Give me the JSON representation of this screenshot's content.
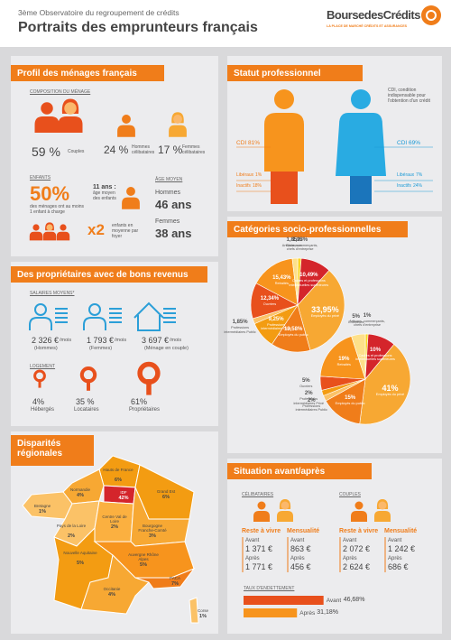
{
  "header": {
    "title": "3ème Observatoire du regroupement de crédits",
    "subtitle": "Portraits des emprunteurs français",
    "logo": "BoursedesCrédits",
    "logo_tagline": "LA PLACE DE MARCHÉ CRÉDITS ET ASSURANCES"
  },
  "profil": {
    "title": "Profil des ménages français",
    "composition_label": "COMPOSITION DU MÉNAGE",
    "composition": [
      {
        "value": "59 %",
        "label": "Couples"
      },
      {
        "value": "24 %",
        "label": "Hommes célibataires"
      },
      {
        "value": "17 %",
        "label": "Femmes célibataires"
      }
    ],
    "enfants_label": "ENFANTS",
    "enfants_pct": "50%",
    "enfants_desc": "des ménages ont au moins 1 enfant à charge",
    "age_enfants": "11 ans :",
    "age_enfants_desc": "âge moyen des enfants",
    "nb_enfants": "x2",
    "nb_enfants_desc": "enfants en moyenne par foyer",
    "age_label": "ÂGE MOYEN",
    "ages": [
      {
        "label": "Hommes",
        "value": "46 ans"
      },
      {
        "label": "Femmes",
        "value": "38 ans"
      }
    ]
  },
  "proprietaires": {
    "title": "Des propriétaires avec de bons revenus",
    "salaires_label": "SALAIRES MOYENS*",
    "salaires": [
      {
        "amount": "2 326 €",
        "unit": "/mois",
        "label": "(Hommes)"
      },
      {
        "amount": "1 793 €",
        "unit": "/mois",
        "label": "(Femmes)"
      },
      {
        "amount": "3 697 €",
        "unit": "/mois",
        "label": "(Ménage en couple)"
      }
    ],
    "logement_label": "LOGEMENT",
    "logement": [
      {
        "value": "4%",
        "label": "Hébergés"
      },
      {
        "value": "35 %",
        "label": "Locataires"
      },
      {
        "value": "61%",
        "label": "Propriétaires"
      }
    ]
  },
  "regions": {
    "title": "Disparités régionales",
    "items": [
      {
        "name": "Hauts de France",
        "value": "6%"
      },
      {
        "name": "Normandie",
        "value": "4%"
      },
      {
        "name": "Bretagne",
        "value": "1%"
      },
      {
        "name": "IDF",
        "value": "42%"
      },
      {
        "name": "Grand Est",
        "value": "6%"
      },
      {
        "name": "Pays de la Loire",
        "value": "2%"
      },
      {
        "name": "Centre Val de Loire",
        "value": "2%"
      },
      {
        "name": "Bourgogne Franche-Comté",
        "value": "3%"
      },
      {
        "name": "Nouvelle Aquitaine",
        "value": "5%"
      },
      {
        "name": "Auvergne Rhône Alpes",
        "value": "5%"
      },
      {
        "name": "Occitanie",
        "value": "4%"
      },
      {
        "name": "PACA",
        "value": "7%"
      },
      {
        "name": "Corse",
        "value": "1%"
      }
    ]
  },
  "statut": {
    "title": "Statut professionnel",
    "note": "CDI, condition indispensable pour l'obtention d'un crédit",
    "hommes": [
      {
        "label": "CDI",
        "value": "81%"
      },
      {
        "label": "Libéraux",
        "value": "1%"
      },
      {
        "label": "Inactifs",
        "value": "18%"
      }
    ],
    "femmes": [
      {
        "label": "CDI",
        "value": "69%"
      },
      {
        "label": "Libéraux",
        "value": "7%"
      },
      {
        "label": "Inactifs",
        "value": "24%"
      }
    ]
  },
  "csp": {
    "title": "Catégories socio-professionnelles",
    "pies": [
      {
        "slices": [
          {
            "label": "Artisans, commerçants, chefs d'entreprise",
            "value": 1.23,
            "value_label": "1,23%",
            "color": "#f9d423"
          },
          {
            "label": "Cadres et professions intellectuelles supérieures",
            "value": 10.49,
            "value_label": "10,49%",
            "color": "#d4252b"
          },
          {
            "label": "Employés du privé",
            "value": 33.95,
            "value_label": "33,95%",
            "color": "#f7a833"
          },
          {
            "label": "Employés du public",
            "value": 13.58,
            "value_label": "13,58%",
            "color": "#f07d1a"
          },
          {
            "label": "Professions intermédiaires Privé",
            "value": 9.25,
            "value_label": "9,25%",
            "color": "#f39c12"
          },
          {
            "label": "Professions intermédiaires Public",
            "value": 1.85,
            "value_label": "1,85%",
            "color": "#fbc267"
          },
          {
            "label": "Ouvriers",
            "value": 12.34,
            "value_label": "12,34%",
            "color": "#e8501c"
          },
          {
            "label": "Retraités",
            "value": 15.43,
            "value_label": "15,43%",
            "color": "#f7941d"
          },
          {
            "label": "Chômeurs",
            "value": 1.85,
            "value_label": "1,85%",
            "color": "#fde08a"
          }
        ]
      },
      {
        "slices": [
          {
            "label": "Artisans, commerçants, chefs d'entreprise",
            "value": 1,
            "value_label": "1%",
            "color": "#f9d423"
          },
          {
            "label": "Cadres et professions intellectuelles supérieures",
            "value": 10,
            "value_label": "10%",
            "color": "#d4252b"
          },
          {
            "label": "Employés du privé",
            "value": 41,
            "value_label": "41%",
            "color": "#f7a833"
          },
          {
            "label": "Employés du public",
            "value": 15,
            "value_label": "15%",
            "color": "#f07d1a"
          },
          {
            "label": "Professions intermédiaires Public",
            "value": 2,
            "value_label": "2%",
            "color": "#fbc267"
          },
          {
            "label": "Professions intermédiaires Privé",
            "value": 2,
            "value_label": "2%",
            "color": "#f39c12"
          },
          {
            "label": "Ouvriers",
            "value": 5,
            "value_label": "5%",
            "color": "#e8501c"
          },
          {
            "label": "Retraités",
            "value": 19,
            "value_label": "19%",
            "color": "#f7941d"
          },
          {
            "label": "Chômeurs",
            "value": 5,
            "value_label": "5%",
            "color": "#fde08a"
          }
        ]
      }
    ]
  },
  "situation": {
    "title": "Situation avant/après",
    "groups": [
      {
        "label": "CÉLIBATAIRES",
        "columns": [
          {
            "header": "Reste à vivre",
            "rows": [
              {
                "label": "Avant",
                "value": "1 371 €"
              },
              {
                "label": "Après",
                "value": "1 771 €"
              }
            ]
          },
          {
            "header": "Mensualité",
            "rows": [
              {
                "label": "Avant",
                "value": "863 €"
              },
              {
                "label": "Après",
                "value": "456 €"
              }
            ]
          }
        ]
      },
      {
        "label": "COUPLES",
        "columns": [
          {
            "header": "Reste à vivre",
            "rows": [
              {
                "label": "Avant",
                "value": "2 072 €"
              },
              {
                "label": "Après",
                "value": "2 624 €"
              }
            ]
          },
          {
            "header": "Mensualité",
            "rows": [
              {
                "label": "Avant",
                "value": "1 242 €"
              },
              {
                "label": "Après",
                "value": "686 €"
              }
            ]
          }
        ]
      }
    ],
    "taux_label": "TAUX D'ENDETTEMENT",
    "taux": [
      {
        "label": "Avant",
        "value": 46.68,
        "value_label": "46,68%",
        "color": "#e8501c"
      },
      {
        "label": "Après",
        "value": 31.18,
        "value_label": "31,18%",
        "color": "#f7941d"
      }
    ]
  }
}
